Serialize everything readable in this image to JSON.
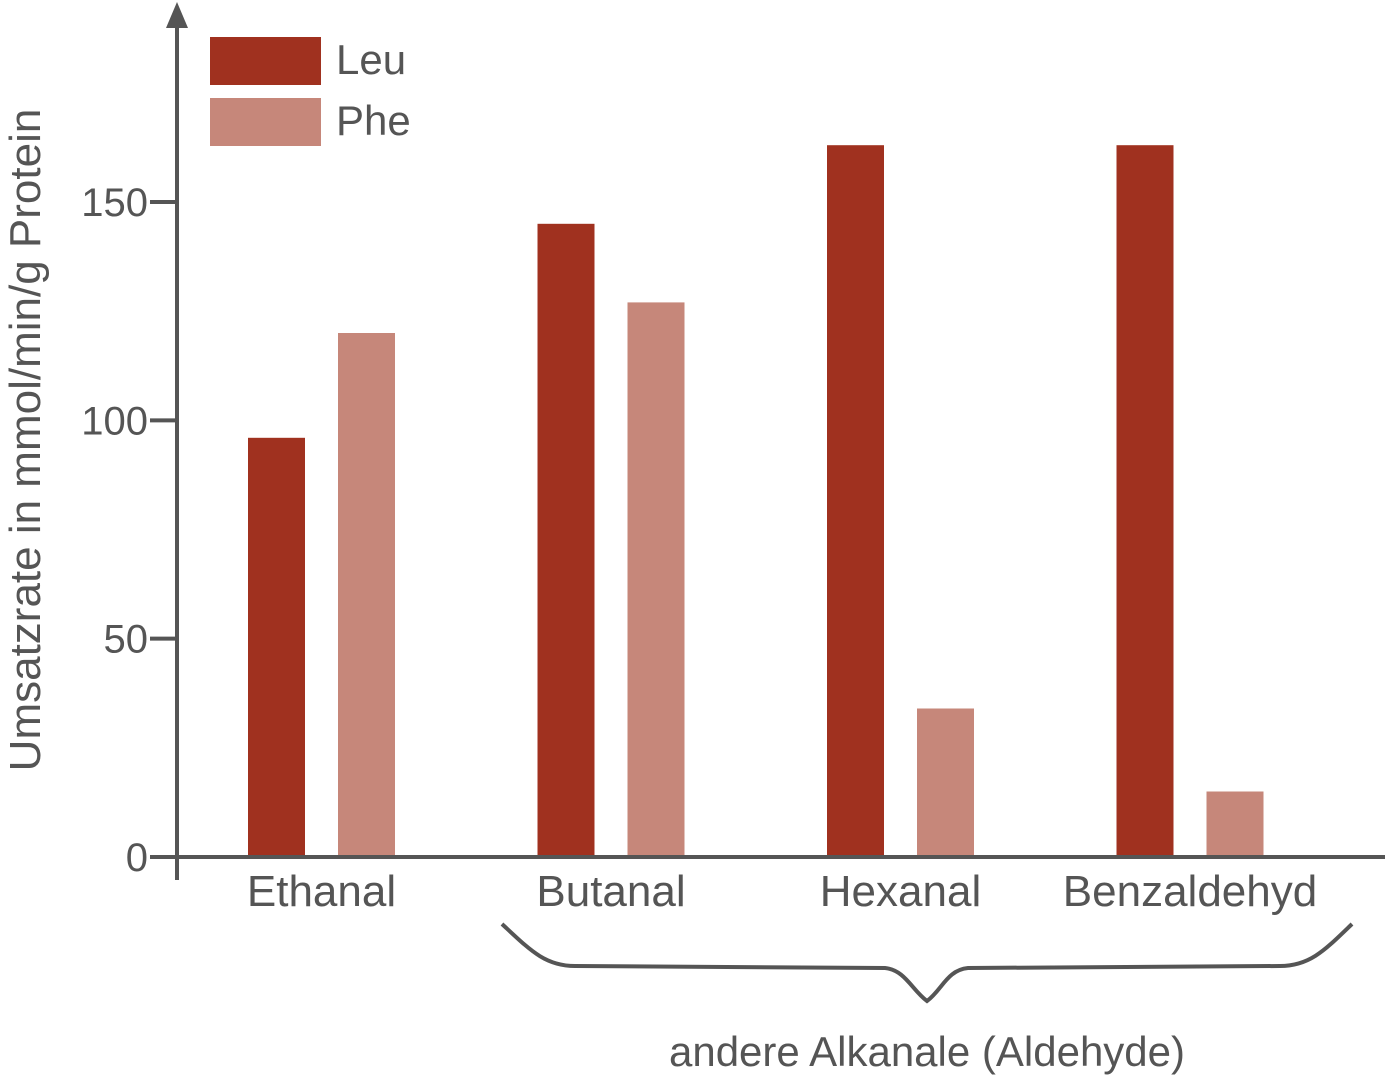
{
  "chart_data": {
    "type": "bar",
    "title": "",
    "xlabel": "",
    "ylabel": "Umsatzrate in mmol/min/g Protein",
    "categories": [
      "Ethanal",
      "Butanal",
      "Hexanal",
      "Benzaldehyd"
    ],
    "series": [
      {
        "name": "Leu",
        "values": [
          96,
          145,
          163,
          163
        ]
      },
      {
        "name": "Phe",
        "values": [
          120,
          127,
          34,
          15
        ]
      }
    ],
    "yticks": [
      0,
      50,
      100,
      150
    ],
    "ytick_labels": [
      "0",
      "50",
      "100",
      "150"
    ],
    "ylim": [
      0,
      190
    ],
    "grid": false,
    "legend_position": "top-left",
    "group_annotation": {
      "label": "andere Alkanale (Aldehyde)",
      "categories": [
        "Butanal",
        "Hexanal",
        "Benzaldehyd"
      ]
    },
    "colors": {
      "Leu": "#a0311f",
      "Phe": "#c6877a",
      "axis": "#555555"
    }
  }
}
